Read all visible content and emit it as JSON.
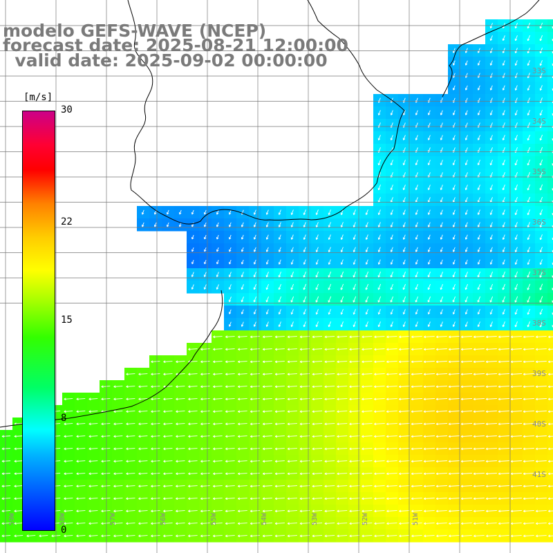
{
  "title": {
    "line1": "modelo GEFS-WAVE (NCEP)",
    "line2": "forecast date: 2025-08-21 12:00:00",
    "line3": "  valid date: 2025-09-02 00:00:00"
  },
  "colorbar": {
    "unit": "[m/s]",
    "ticks": [
      {
        "label": "30",
        "value": 30
      },
      {
        "label": "22",
        "value": 22
      },
      {
        "label": "15",
        "value": 15
      },
      {
        "label": "8",
        "value": 8
      },
      {
        "label": "0",
        "value": 0
      }
    ]
  },
  "lat_labels": [
    "33S",
    "34S",
    "35S",
    "36S",
    "37S",
    "38S",
    "39S",
    "40S",
    "41S"
  ],
  "lon_labels": [
    "59W",
    "58W",
    "57W",
    "56W",
    "55W",
    "54W",
    "53W",
    "52W",
    "51W"
  ],
  "chart_data": {
    "type": "heatmap",
    "variable": "wind speed",
    "unit": "m/s",
    "color_range": [
      0,
      30
    ],
    "regions": [
      {
        "area": "north / estuary",
        "speed_range": [
          4,
          9
        ],
        "wind_direction": "from NE"
      },
      {
        "area": "south",
        "speed_range": [
          14,
          20
        ],
        "wind_direction": "from E"
      }
    ]
  },
  "colors": {
    "land": "#ffffff",
    "grid": "#777777",
    "coast": "#000000",
    "title": "#7a7a7a",
    "arrow": "#ffffff"
  }
}
